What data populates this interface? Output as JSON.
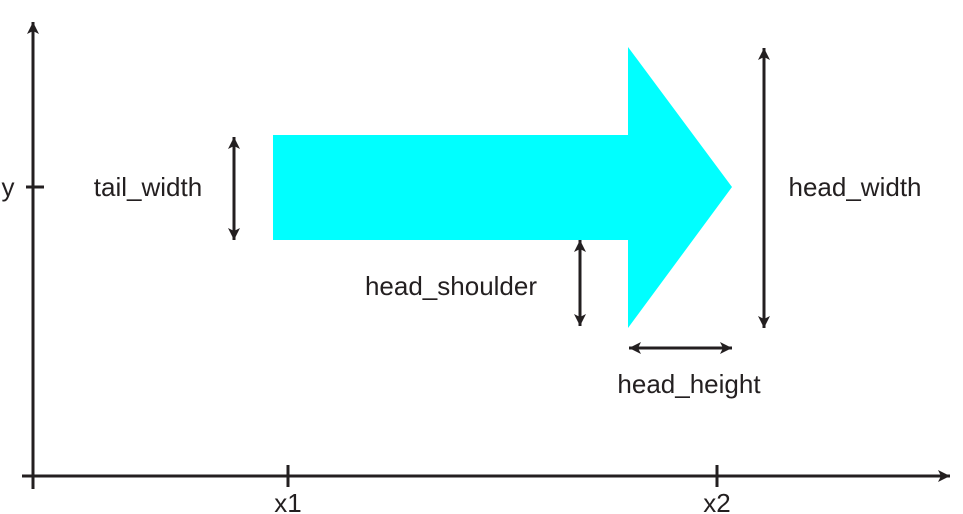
{
  "axes": {
    "y_label": "y",
    "x_ticks": [
      "x1",
      "x2"
    ]
  },
  "labels": {
    "tail_width": "tail_width",
    "head_shoulder": "head_shoulder",
    "head_width": "head_width",
    "head_height": "head_height"
  },
  "colors": {
    "arrow_fill": "#00ffff",
    "ink": "#231f20",
    "background": "#ffffff"
  }
}
